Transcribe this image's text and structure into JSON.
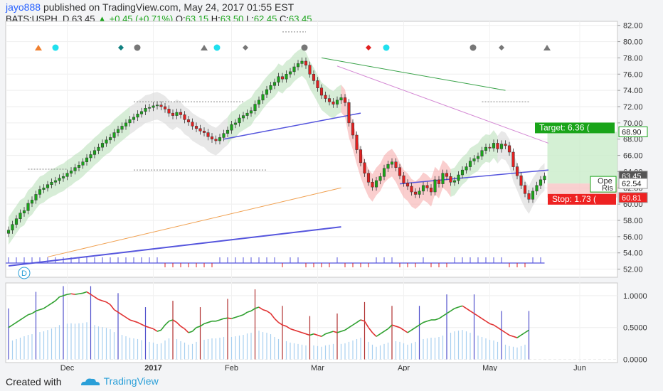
{
  "header": {
    "user": "jayo888",
    "published_text": "published on TradingView.com, May 24, 2017 01:55 EST",
    "symbol": "BATS:USPH, D",
    "last": "63.45",
    "change": "+0.45 (+0.71%)",
    "o_label": "O:",
    "o_val": "63.15",
    "h_label": "H:",
    "h_val": "63.50",
    "l_label": "L:",
    "l_val": "62.45",
    "c_label": "C:",
    "c_val": "63.45"
  },
  "footer": {
    "created_with": "Created with",
    "logo_text": "TradingView"
  },
  "colors": {
    "up": "#19a419",
    "down": "#e02020",
    "accent": "#2962ff",
    "ma_blue": "#5555dd",
    "ma_orange": "#f0a050",
    "green_line": "#3aa34a",
    "oscillator_hist": "#a8d0f0"
  },
  "chart_data": [
    {
      "type": "candlestick",
      "ylim": [
        51,
        82.5
      ],
      "y_ticks": [
        "82.00",
        "80.00",
        "78.00",
        "76.00",
        "74.00",
        "72.00",
        "70.00",
        "68.00",
        "66.00",
        "64.00",
        "62.00",
        "60.00",
        "58.00",
        "56.00",
        "54.00",
        "52.00"
      ],
      "x_ticks": [
        "Dec",
        "2017",
        "Feb",
        "Mar",
        "Apr",
        "May",
        "Jun"
      ],
      "interval_badge": "D",
      "price_labels": [
        {
          "text": "68.90",
          "kind": "target",
          "value": 68.9
        },
        {
          "text": "63.45",
          "kind": "last",
          "value": 63.45
        },
        {
          "text": "62.54",
          "kind": "entry",
          "value": 62.54
        },
        {
          "text": "60.81",
          "kind": "stop",
          "value": 60.81
        }
      ],
      "position_tool": {
        "target_text": "Target: 6.36 (",
        "open_text": "Ope",
        "risk_text": "Ris",
        "stop_text": "Stop: 1.73 (",
        "target": 68.9,
        "entry": 62.54,
        "stop": 60.81
      },
      "close_series": [
        56.8,
        57.5,
        58.2,
        58.9,
        59.2,
        60.1,
        60.5,
        61.2,
        61.8,
        62.0,
        62.4,
        62.7,
        62.9,
        63.2,
        63.4,
        63.8,
        64.1,
        64.5,
        64.8,
        65.2,
        65.7,
        66.1,
        66.6,
        67.0,
        67.5,
        67.9,
        68.2,
        68.8,
        69.2,
        69.6,
        70.0,
        70.4,
        70.7,
        71.1,
        71.4,
        71.8,
        71.9,
        72.1,
        72.2,
        72.0,
        71.7,
        71.2,
        70.9,
        71.3,
        71.0,
        70.4,
        70.1,
        69.6,
        69.3,
        69.0,
        68.8,
        68.3,
        68.0,
        67.8,
        68.2,
        68.7,
        69.1,
        69.8,
        70.0,
        70.6,
        70.9,
        71.2,
        71.5,
        72.3,
        72.8,
        73.5,
        74.1,
        74.6,
        75.0,
        75.7,
        75.4,
        76.0,
        76.3,
        76.9,
        77.3,
        77.6,
        77.1,
        76.0,
        75.2,
        74.3,
        73.4,
        73.0,
        72.6,
        72.3,
        72.8,
        73.1,
        72.5,
        70.0,
        68.5,
        66.7,
        65.1,
        63.8,
        62.7,
        62.1,
        62.9,
        63.4,
        64.4,
        64.9,
        65.2,
        64.5,
        63.5,
        62.6,
        62.2,
        61.5,
        61.2,
        61.6,
        62.3,
        62.0,
        61.5,
        63.0,
        62.5,
        63.8,
        63.4,
        62.7,
        62.9,
        63.6,
        64.2,
        64.6,
        65.3,
        65.6,
        65.9,
        66.6,
        67.0,
        66.9,
        67.5,
        66.8,
        67.4,
        67.2,
        66.4,
        64.6,
        63.5,
        62.3,
        61.3,
        60.6,
        61.6,
        62.3,
        63.0,
        63.45
      ],
      "ma_blue": {
        "start": [
          0,
          52.4
        ],
        "end": [
          85,
          57.2
        ]
      },
      "ma_orange": {
        "start": [
          10,
          53.5
        ],
        "end": [
          85,
          62.0
        ]
      },
      "markers": [
        "orange-triangle",
        "cyan-circle",
        "teal-diamond",
        "gray-circle",
        "gray-triangle",
        "cyan-circle",
        "gray-diamond",
        "gray-circle",
        "red-diamond",
        "cyan-circle",
        "gray-circle",
        "gray-diamond",
        "gray-triangle"
      ]
    },
    {
      "type": "oscillator",
      "ylim": [
        -0.05,
        1.2
      ],
      "y_ticks": [
        "1.0000",
        "0.5000",
        "0.0000"
      ],
      "line_values": [
        0.5,
        0.54,
        0.58,
        0.62,
        0.66,
        0.7,
        0.72,
        0.76,
        0.78,
        0.8,
        0.84,
        0.88,
        0.92,
        0.98,
        1.0,
        1.02,
        1.03,
        1.02,
        1.03,
        1.04,
        1.06,
        1.02,
        0.98,
        0.94,
        0.92,
        0.9,
        0.86,
        0.78,
        0.74,
        0.7,
        0.66,
        0.62,
        0.6,
        0.58,
        0.55,
        0.52,
        0.5,
        0.48,
        0.44,
        0.46,
        0.54,
        0.6,
        0.62,
        0.58,
        0.52,
        0.48,
        0.42,
        0.44,
        0.5,
        0.52,
        0.56,
        0.58,
        0.6,
        0.6,
        0.62,
        0.64,
        0.65,
        0.64,
        0.66,
        0.68,
        0.7,
        0.74,
        0.76,
        0.8,
        0.82,
        0.78,
        0.76,
        0.72,
        0.64,
        0.58,
        0.54,
        0.52,
        0.48,
        0.46,
        0.44,
        0.42,
        0.4,
        0.38,
        0.4,
        0.38,
        0.36,
        0.4,
        0.42,
        0.44,
        0.42,
        0.44,
        0.46,
        0.5,
        0.54,
        0.58,
        0.62,
        0.6,
        0.5,
        0.42,
        0.36,
        0.4,
        0.44,
        0.48,
        0.54,
        0.52,
        0.5,
        0.46,
        0.42,
        0.46,
        0.5,
        0.54,
        0.58,
        0.6,
        0.62,
        0.62,
        0.64,
        0.68,
        0.72,
        0.76,
        0.8,
        0.82,
        0.84,
        0.8,
        0.76,
        0.72,
        0.68,
        0.64,
        0.6,
        0.56,
        0.54,
        0.5,
        0.46,
        0.42,
        0.38,
        0.36,
        0.34,
        0.38,
        0.42,
        0.46
      ]
    }
  ]
}
